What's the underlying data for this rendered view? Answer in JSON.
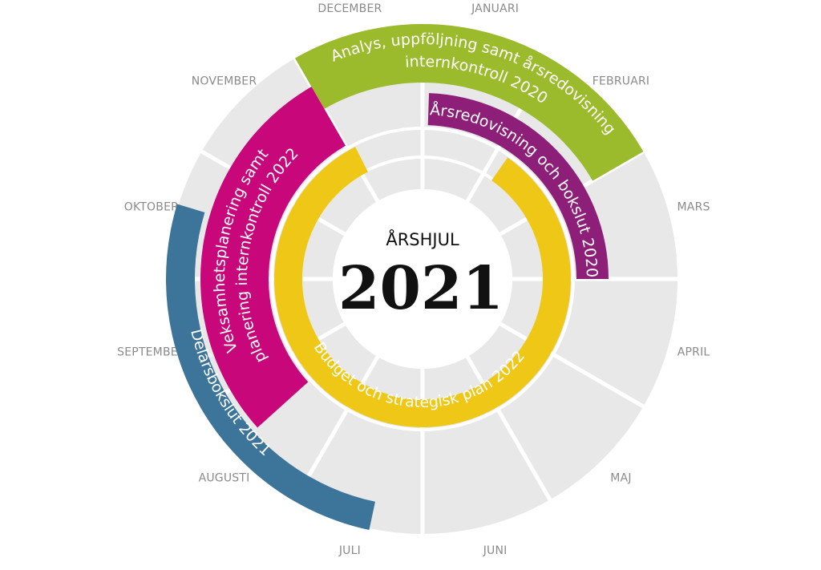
{
  "center": {
    "title": "ÅRSHJUL",
    "year": "2021"
  },
  "months": [
    "JANUARI",
    "FEBRUARI",
    "MARS",
    "APRIL",
    "MAJ",
    "JUNI",
    "JULI",
    "AUGUSTI",
    "SEPTEMBER",
    "OKTOBER",
    "NOVEMBER",
    "DECEMBER"
  ],
  "colors": {
    "sector": "#e8e8e8",
    "separator": "#ffffff",
    "month_label": "#8a8a8a",
    "green": "#9cbb2c",
    "purple": "#8d1f78",
    "magenta": "#c8087a",
    "blue": "#3c7599",
    "yellow": "#efc817"
  },
  "processes": {
    "green": {
      "line1": "Analys, uppföljning samt årsredovisning",
      "line2": "internkontroll 2020"
    },
    "purple": {
      "line1": "Årsredovisning och bokslut 2020"
    },
    "magenta": {
      "line1": "Veksamhetsplanering samt",
      "line2": "planering internkontroll 2022"
    },
    "blue": {
      "line1": "Delårsbokslut 2021"
    },
    "yellow": {
      "line1": "Budget och strategisk plan 2022"
    }
  }
}
